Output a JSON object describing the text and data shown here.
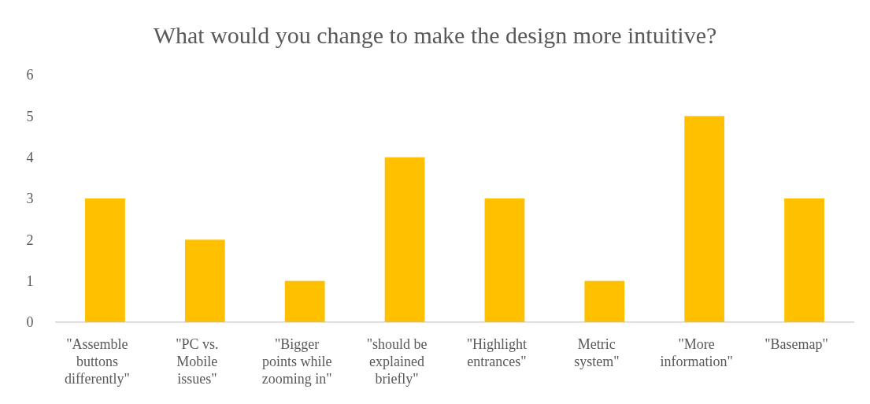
{
  "chart_data": {
    "type": "bar",
    "title": "What would you change to make the design more intuitive?",
    "categories": [
      "\"Assemble buttons differently\"",
      "\"PC vs. Mobile issues\"",
      "\"Bigger points while zooming in\"",
      "\"should be explained briefly\"",
      "\"Highlight entrances\"",
      "Metric system\"",
      "\"More information\"",
      "\"Basemap\""
    ],
    "values": [
      3,
      2,
      1,
      4,
      3,
      1,
      5,
      3
    ],
    "color": "#ffc000",
    "ylim": [
      0,
      6
    ],
    "yticks": [
      0,
      1,
      2,
      3,
      4,
      5,
      6
    ],
    "grid": false
  }
}
